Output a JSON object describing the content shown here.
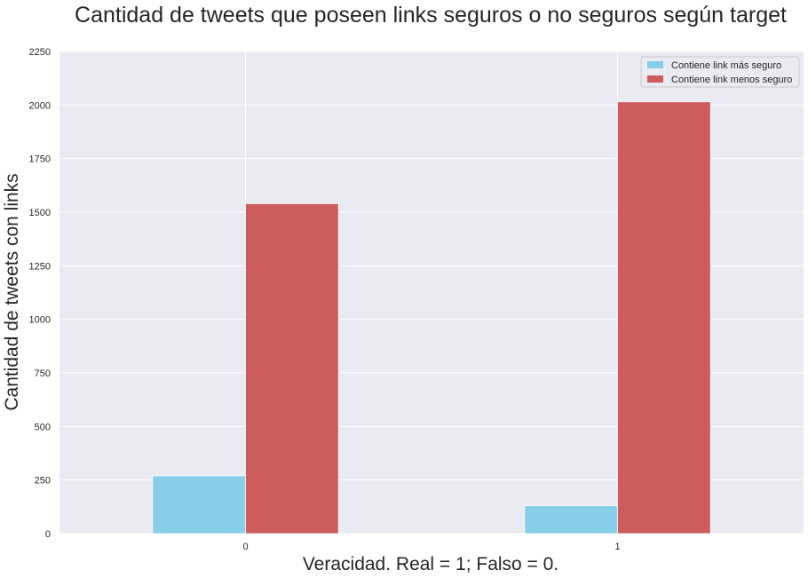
{
  "chart_data": {
    "type": "bar",
    "title": "Cantidad de tweets que poseen links seguros o no seguros según target",
    "xlabel": "Veracidad. Real = 1; Falso = 0.",
    "ylabel": "Cantidad de tweets con links",
    "categories": [
      "0",
      "1"
    ],
    "series": [
      {
        "name": "Contiene link más seguro",
        "values": [
          270,
          130
        ],
        "color": "#87ceeb"
      },
      {
        "name": "Contiene link menos seguro",
        "values": [
          1540,
          2015
        ],
        "color": "#cd5c5c"
      }
    ],
    "ylim": [
      0,
      2250
    ],
    "yticks": [
      0,
      250,
      500,
      750,
      1000,
      1250,
      1500,
      1750,
      2000,
      2250
    ],
    "grid": true,
    "legend": "top-right",
    "background": "#eaeaf2"
  }
}
